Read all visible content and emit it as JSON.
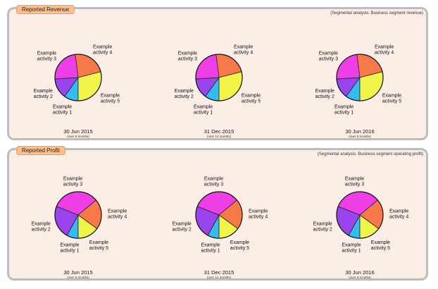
{
  "colors": {
    "activity_1": "#33bdf0",
    "activity_2": "#9a44ee",
    "activity_3": "#ee3fe6",
    "activity_4": "#f6794a",
    "activity_5": "#f2f447",
    "panel_bg": "#fbeee6",
    "tab_bg": "#f9c08d"
  },
  "revenue": {
    "tab_label": "Reported Revenue",
    "note": "(Segmental analysis: Business segment revenue)"
  },
  "profit": {
    "tab_label": "Reported Profit",
    "note": "(Segmental analysis: Business segment operating profit)"
  },
  "activity_labels": [
    [
      "Example",
      "activity 1"
    ],
    [
      "Example",
      "activity 2"
    ],
    [
      "Example",
      "activity 3"
    ],
    [
      "Example",
      "activity 4"
    ],
    [
      "Example",
      "activity 5"
    ]
  ],
  "chart_data": [
    {
      "type": "pie",
      "group": "revenue",
      "period": "30 Jun 2015",
      "period_note": "(over 6 months)",
      "categories": [
        "Example activity 1",
        "Example activity 2",
        "Example activity 3",
        "Example activity 4",
        "Example activity 5"
      ],
      "values": [
        10,
        14,
        24,
        23,
        29
      ]
    },
    {
      "type": "pie",
      "group": "revenue",
      "period": "31 Dec 2015",
      "period_note": "(over 12 months)",
      "categories": [
        "Example activity 1",
        "Example activity 2",
        "Example activity 3",
        "Example activity 4",
        "Example activity 5"
      ],
      "values": [
        10,
        14,
        24,
        23,
        29
      ]
    },
    {
      "type": "pie",
      "group": "revenue",
      "period": "30 Jun 2016",
      "period_note": "(over 6 months)",
      "categories": [
        "Example activity 1",
        "Example activity 2",
        "Example activity 3",
        "Example activity 4",
        "Example activity 5"
      ],
      "values": [
        10,
        14,
        24,
        23,
        29
      ]
    },
    {
      "type": "pie",
      "group": "profit",
      "period": "30 Jun 2015",
      "period_note": "(over 6 months)",
      "categories": [
        "Example activity 1",
        "Example activity 2",
        "Example activity 3",
        "Example activity 4",
        "Example activity 5"
      ],
      "values": [
        8,
        23,
        33,
        21,
        15
      ]
    },
    {
      "type": "pie",
      "group": "profit",
      "period": "31 Dec 2015",
      "period_note": "(over 12 months)",
      "categories": [
        "Example activity 1",
        "Example activity 2",
        "Example activity 3",
        "Example activity 4",
        "Example activity 5"
      ],
      "values": [
        8,
        23,
        33,
        21,
        15
      ]
    },
    {
      "type": "pie",
      "group": "profit",
      "period": "30 Jun 2016",
      "period_note": "(over 6 months)",
      "categories": [
        "Example activity 1",
        "Example activity 2",
        "Example activity 3",
        "Example activity 4",
        "Example activity 5"
      ],
      "values": [
        8,
        23,
        33,
        21,
        15
      ]
    }
  ]
}
